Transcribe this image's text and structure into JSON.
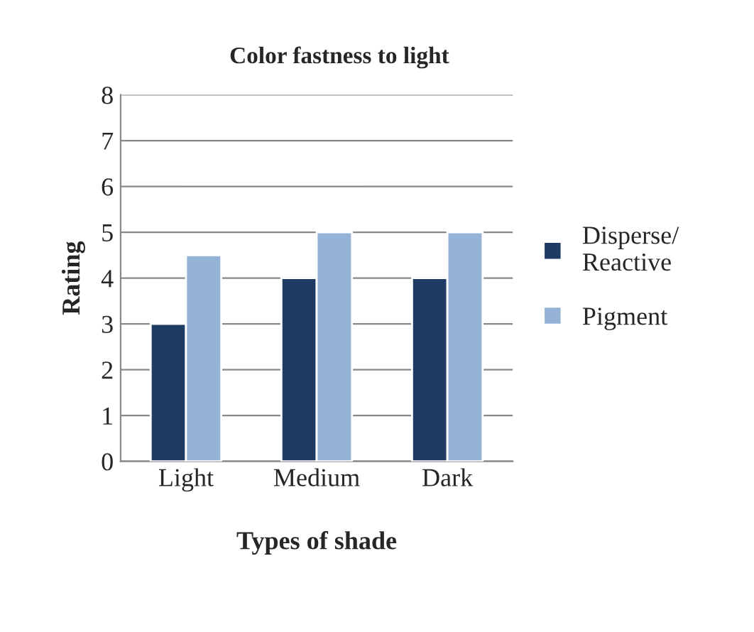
{
  "chart_data": {
    "type": "bar",
    "title": "Color fastness to light",
    "xlabel": "Types of shade",
    "ylabel": "Rating",
    "categories": [
      "Light",
      "Medium",
      "Dark"
    ],
    "series": [
      {
        "name": "Disperse/\nReactive",
        "color": "#1f3b64",
        "values": [
          3,
          4,
          4
        ]
      },
      {
        "name": "Pigment",
        "color": "#95b3d7",
        "values": [
          4.5,
          5,
          5
        ]
      }
    ],
    "ylim": [
      0,
      8
    ],
    "yticks": [
      0,
      1,
      2,
      3,
      4,
      5,
      6,
      7,
      8
    ],
    "grid": "y",
    "legend": "right"
  }
}
